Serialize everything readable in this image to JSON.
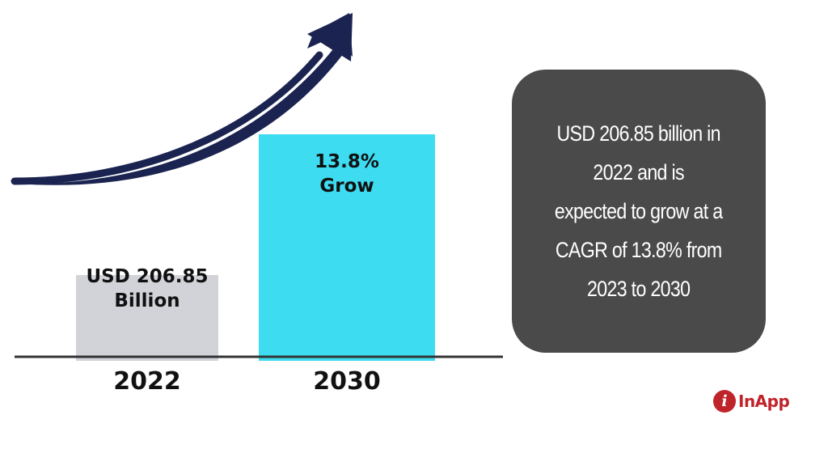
{
  "chart_data": {
    "type": "bar",
    "categories": [
      "2022",
      "2030"
    ],
    "values": [
      206.85,
      546.2
    ],
    "bar_labels": [
      [
        "USD 206.85",
        "Billion"
      ],
      [
        "13.8%",
        "Grow"
      ]
    ],
    "colors": [
      "#d1d3d8",
      "#3ddcf0"
    ],
    "axis_color": "#333333",
    "arrow_color": "#1b2450",
    "ylim": [
      0,
      640
    ]
  },
  "info_box": {
    "lines": [
      "USD 206.85 billion in",
      "2022 and is",
      "expected to grow at a",
      "CAGR of 13.8% from",
      "2023 to 2030"
    ],
    "background": "#4a4a4a"
  },
  "logo": {
    "mark": "i",
    "text": "InApp",
    "color": "#c0242b"
  }
}
